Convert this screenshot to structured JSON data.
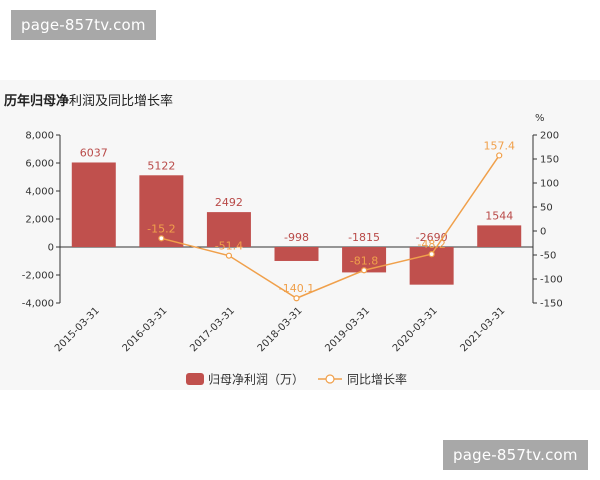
{
  "watermark": "page-857tv.com",
  "title": {
    "bold": "历年归母净",
    "normal": "利润及同比增长率"
  },
  "chart_data": {
    "type": "bar",
    "categories": [
      "2015-03-31",
      "2016-03-31",
      "2017-03-31",
      "2018-03-31",
      "2019-03-31",
      "2020-03-31",
      "2021-03-31"
    ],
    "series": [
      {
        "name": "归母净利润（万）",
        "type": "bar",
        "axis": "left",
        "color": "#c0504d",
        "values": [
          6037,
          5122,
          2492,
          -998,
          -1815,
          -2690,
          1544
        ]
      },
      {
        "name": "同比增长率",
        "type": "line",
        "axis": "right",
        "color": "#f0a04b",
        "values": [
          null,
          -15.2,
          -51.4,
          -140.1,
          -81.8,
          -48.2,
          157.4
        ]
      }
    ],
    "y_left": {
      "range": [
        -4000,
        8000
      ],
      "ticks": [
        "8,000",
        "6,000",
        "4,000",
        "2,000",
        "0",
        "-2,000",
        "-4,000"
      ]
    },
    "y_right": {
      "label": "%",
      "range": [
        -150,
        200
      ],
      "ticks": [
        "200",
        "150",
        "100",
        "50",
        "0",
        "-50",
        "-100",
        "-150"
      ]
    },
    "bar_labels": [
      "6037",
      "5122",
      "2492",
      "-998",
      "-1815",
      "-2690",
      "1544"
    ],
    "line_labels": [
      "",
      "-15.2",
      "-51.4",
      "-140.1",
      "-81.8",
      "-48.2",
      "157.4"
    ],
    "legend_position": "bottom"
  }
}
